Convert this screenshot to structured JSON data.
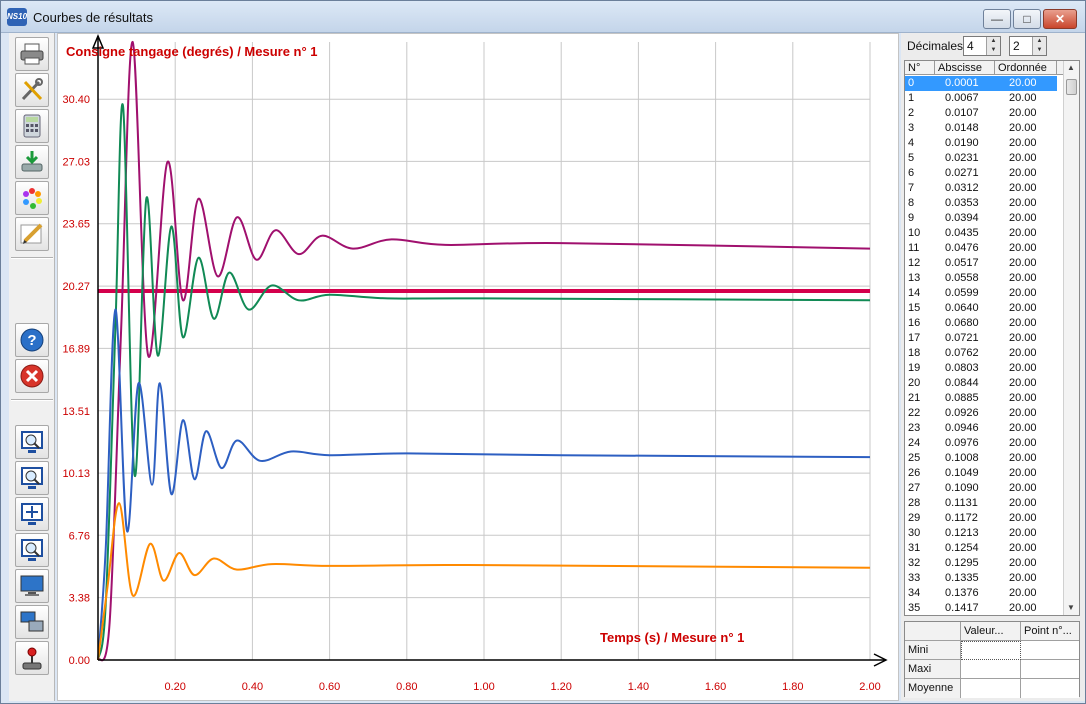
{
  "window": {
    "app_icon_text": "NS10",
    "title": "Courbes de résultats",
    "controls": [
      "minimize",
      "maximize",
      "close"
    ]
  },
  "toolbar": {
    "buttons": [
      {
        "name": "print-button",
        "icon": "printer-icon"
      },
      {
        "name": "settings-button",
        "icon": "tools-icon"
      },
      {
        "name": "calculator-button",
        "icon": "calculator-icon"
      },
      {
        "name": "export-button",
        "icon": "download-icon"
      },
      {
        "name": "colors-button",
        "icon": "color-wheel-icon"
      },
      {
        "name": "edit-button",
        "icon": "pencil-icon"
      },
      {
        "name": "help-button",
        "icon": "help-icon"
      },
      {
        "name": "close-plot-button",
        "icon": "close-icon"
      },
      {
        "name": "zoom-in-button",
        "icon": "zoom-in-icon"
      },
      {
        "name": "zoom-out-button",
        "icon": "zoom-out-icon"
      },
      {
        "name": "pan-button",
        "icon": "move-icon"
      },
      {
        "name": "zoom-window-button",
        "icon": "zoom-window-icon"
      },
      {
        "name": "monitor-button",
        "icon": "monitor-icon"
      },
      {
        "name": "network-button",
        "icon": "network-icon"
      },
      {
        "name": "joystick-button",
        "icon": "joystick-icon"
      }
    ]
  },
  "chart_data": {
    "type": "line",
    "title": "Consigne tangage (degrés) / Mesure n° 1",
    "xlabel": "Temps (s) / Mesure n° 1",
    "xlim": [
      0,
      2.0
    ],
    "ylim": [
      0,
      33.5
    ],
    "x_ticks": [
      "0.20",
      "0.40",
      "0.60",
      "0.80",
      "1.00",
      "1.20",
      "1.40",
      "1.60",
      "1.80",
      "2.00"
    ],
    "y_ticks": [
      "0.00",
      "3.38",
      "6.76",
      "10.13",
      "13.51",
      "16.89",
      "20.27",
      "23.65",
      "27.03",
      "30.40"
    ],
    "grid": true,
    "colors": {
      "axis_text": "#cc0000",
      "grid": "#c8c8c8"
    },
    "series": [
      {
        "color": "#d4004c",
        "kind": "step",
        "points": [
          [
            0,
            20
          ],
          [
            2.0,
            20
          ]
        ]
      },
      {
        "color": "#a0106e",
        "points": [
          [
            0,
            0
          ],
          [
            0.03,
            2
          ],
          [
            0.06,
            18
          ],
          [
            0.09,
            33.5
          ],
          [
            0.13,
            16.5
          ],
          [
            0.18,
            27
          ],
          [
            0.22,
            19.5
          ],
          [
            0.26,
            25
          ],
          [
            0.31,
            20.8
          ],
          [
            0.36,
            24
          ],
          [
            0.41,
            21.7
          ],
          [
            0.46,
            23.3
          ],
          [
            0.52,
            22
          ],
          [
            0.58,
            23
          ],
          [
            0.66,
            22.3
          ],
          [
            0.76,
            22.8
          ],
          [
            0.9,
            22.5
          ],
          [
            1.2,
            22.6
          ],
          [
            2.0,
            22.3
          ]
        ]
      },
      {
        "color": "#118a55",
        "points": [
          [
            0,
            0
          ],
          [
            0.02,
            3
          ],
          [
            0.045,
            18
          ],
          [
            0.065,
            30
          ],
          [
            0.095,
            10
          ],
          [
            0.125,
            25
          ],
          [
            0.155,
            16.5
          ],
          [
            0.19,
            23.5
          ],
          [
            0.22,
            17.5
          ],
          [
            0.26,
            21.8
          ],
          [
            0.3,
            18.5
          ],
          [
            0.34,
            21
          ],
          [
            0.39,
            19
          ],
          [
            0.45,
            20.3
          ],
          [
            0.52,
            19.5
          ],
          [
            0.6,
            19.8
          ],
          [
            0.75,
            19.6
          ],
          [
            1.0,
            19.6
          ],
          [
            2.0,
            19.5
          ]
        ]
      },
      {
        "color": "#2d5fc2",
        "points": [
          [
            0,
            0
          ],
          [
            0.02,
            6
          ],
          [
            0.045,
            19
          ],
          [
            0.075,
            7
          ],
          [
            0.105,
            15
          ],
          [
            0.14,
            9.5
          ],
          [
            0.16,
            15
          ],
          [
            0.19,
            9
          ],
          [
            0.22,
            13
          ],
          [
            0.25,
            9.8
          ],
          [
            0.28,
            12.4
          ],
          [
            0.32,
            10.4
          ],
          [
            0.36,
            11.9
          ],
          [
            0.42,
            10.8
          ],
          [
            0.5,
            11.3
          ],
          [
            0.6,
            11.1
          ],
          [
            0.8,
            11.2
          ],
          [
            1.2,
            11.1
          ],
          [
            2.0,
            11.0
          ]
        ]
      },
      {
        "color": "#ff8a00",
        "points": [
          [
            0,
            0
          ],
          [
            0.025,
            4
          ],
          [
            0.055,
            8.5
          ],
          [
            0.09,
            3.5
          ],
          [
            0.135,
            6.3
          ],
          [
            0.17,
            4.3
          ],
          [
            0.21,
            5.8
          ],
          [
            0.25,
            4.6
          ],
          [
            0.3,
            5.5
          ],
          [
            0.36,
            4.9
          ],
          [
            0.45,
            5.2
          ],
          [
            0.6,
            5.1
          ],
          [
            0.9,
            5.15
          ],
          [
            1.3,
            5.1
          ],
          [
            2.0,
            5.0
          ]
        ]
      }
    ]
  },
  "decimals": {
    "label": "Décimales",
    "value1": "4",
    "value2": "2"
  },
  "table": {
    "headers": [
      "N°",
      "Abscisse",
      "Ordonnée"
    ],
    "rows": [
      [
        "0",
        "0.0001",
        "20.00"
      ],
      [
        "1",
        "0.0067",
        "20.00"
      ],
      [
        "2",
        "0.0107",
        "20.00"
      ],
      [
        "3",
        "0.0148",
        "20.00"
      ],
      [
        "4",
        "0.0190",
        "20.00"
      ],
      [
        "5",
        "0.0231",
        "20.00"
      ],
      [
        "6",
        "0.0271",
        "20.00"
      ],
      [
        "7",
        "0.0312",
        "20.00"
      ],
      [
        "8",
        "0.0353",
        "20.00"
      ],
      [
        "9",
        "0.0394",
        "20.00"
      ],
      [
        "10",
        "0.0435",
        "20.00"
      ],
      [
        "11",
        "0.0476",
        "20.00"
      ],
      [
        "12",
        "0.0517",
        "20.00"
      ],
      [
        "13",
        "0.0558",
        "20.00"
      ],
      [
        "14",
        "0.0599",
        "20.00"
      ],
      [
        "15",
        "0.0640",
        "20.00"
      ],
      [
        "16",
        "0.0680",
        "20.00"
      ],
      [
        "17",
        "0.0721",
        "20.00"
      ],
      [
        "18",
        "0.0762",
        "20.00"
      ],
      [
        "19",
        "0.0803",
        "20.00"
      ],
      [
        "20",
        "0.0844",
        "20.00"
      ],
      [
        "21",
        "0.0885",
        "20.00"
      ],
      [
        "22",
        "0.0926",
        "20.00"
      ],
      [
        "23",
        "0.0946",
        "20.00"
      ],
      [
        "24",
        "0.0976",
        "20.00"
      ],
      [
        "25",
        "0.1008",
        "20.00"
      ],
      [
        "26",
        "0.1049",
        "20.00"
      ],
      [
        "27",
        "0.1090",
        "20.00"
      ],
      [
        "28",
        "0.1131",
        "20.00"
      ],
      [
        "29",
        "0.1172",
        "20.00"
      ],
      [
        "30",
        "0.1213",
        "20.00"
      ],
      [
        "31",
        "0.1254",
        "20.00"
      ],
      [
        "32",
        "0.1295",
        "20.00"
      ],
      [
        "33",
        "0.1335",
        "20.00"
      ],
      [
        "34",
        "0.1376",
        "20.00"
      ],
      [
        "35",
        "0.1417",
        "20.00"
      ]
    ],
    "selected_row": 0
  },
  "stats": {
    "headers": [
      "Valeur...",
      "Point n°..."
    ],
    "rows": [
      "Mini",
      "Maxi",
      "Moyenne"
    ]
  }
}
